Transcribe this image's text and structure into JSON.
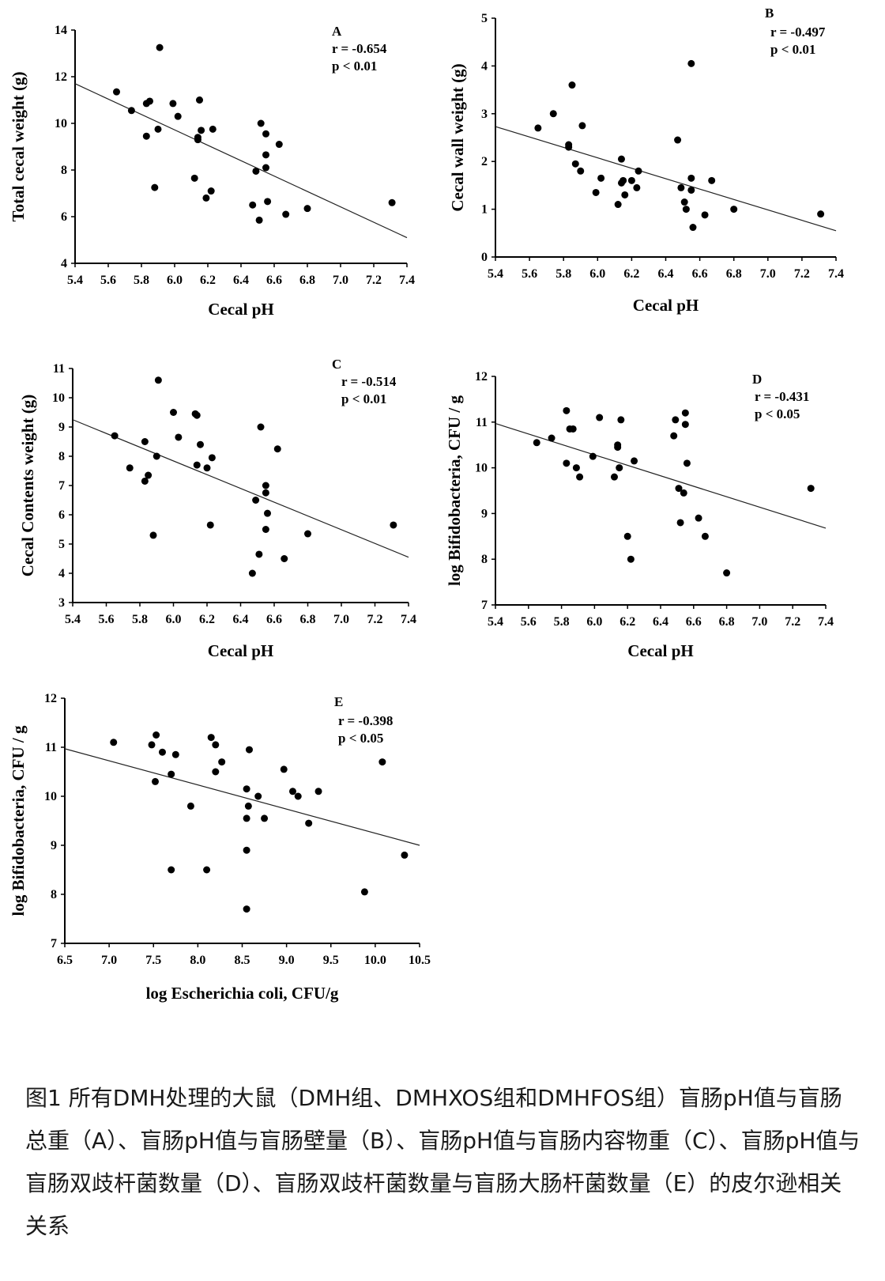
{
  "caption": "图1 所有DMH处理的大鼠（DMH组、DMHXOS组和DMHFOS组）盲肠pH值与盲肠总重（A）、盲肠pH值与盲肠壁量（B）、盲肠pH值与盲肠内容物重（C）、盲肠pH值与盲肠双歧杆菌数量（D）、盲肠双歧杆菌数量与盲肠大肠杆菌数量（E）的皮尔逊相关关系",
  "chart_data": [
    {
      "type": "scatter",
      "panel": "A",
      "r_text": "r = -0.654",
      "p_text": "p < 0.01",
      "xlabel": "Cecal pH",
      "ylabel": "Total cecal  weight (g)",
      "xlim": [
        5.4,
        7.4
      ],
      "ylim": [
        4,
        14
      ],
      "xticks": [
        "5.4",
        "5.6",
        "5.8",
        "6.0",
        "6.2",
        "6.4",
        "6.6",
        "6.8",
        "7.0",
        "7.2",
        "7.4"
      ],
      "yticks": [
        "4",
        "6",
        "8",
        "10",
        "12",
        "14"
      ],
      "points": [
        [
          5.65,
          11.35
        ],
        [
          5.74,
          10.55
        ],
        [
          5.83,
          10.85
        ],
        [
          5.85,
          10.95
        ],
        [
          5.83,
          9.45
        ],
        [
          5.88,
          7.25
        ],
        [
          5.9,
          9.75
        ],
        [
          5.91,
          13.25
        ],
        [
          5.99,
          10.85
        ],
        [
          6.02,
          10.3
        ],
        [
          6.12,
          7.65
        ],
        [
          6.14,
          9.3
        ],
        [
          6.14,
          9.4
        ],
        [
          6.15,
          11.0
        ],
        [
          6.16,
          9.7
        ],
        [
          6.19,
          6.8
        ],
        [
          6.22,
          7.1
        ],
        [
          6.23,
          9.75
        ],
        [
          6.47,
          6.5
        ],
        [
          6.49,
          7.95
        ],
        [
          6.51,
          5.85
        ],
        [
          6.52,
          10.0
        ],
        [
          6.55,
          8.1
        ],
        [
          6.55,
          9.55
        ],
        [
          6.55,
          8.65
        ],
        [
          6.56,
          6.65
        ],
        [
          6.63,
          9.1
        ],
        [
          6.67,
          6.1
        ],
        [
          6.8,
          6.35
        ],
        [
          7.31,
          6.6
        ]
      ],
      "trend": [
        [
          5.4,
          11.7
        ],
        [
          7.4,
          5.1
        ]
      ]
    },
    {
      "type": "scatter",
      "panel": "B",
      "r_text": "r = -0.497",
      "p_text": "p < 0.01",
      "xlabel": "Cecal pH",
      "ylabel": "Cecal wall  weight (g)",
      "xlim": [
        5.4,
        7.4
      ],
      "ylim": [
        0,
        5
      ],
      "xticks": [
        "5.4",
        "5.6",
        "5.8",
        "6.0",
        "6.2",
        "6.4",
        "6.6",
        "6.8",
        "7.0",
        "7.2",
        "7.4"
      ],
      "yticks": [
        "0",
        "1",
        "2",
        "3",
        "4",
        "5"
      ],
      "points": [
        [
          5.65,
          2.7
        ],
        [
          5.74,
          3.0
        ],
        [
          5.83,
          2.35
        ],
        [
          5.83,
          2.3
        ],
        [
          5.85,
          3.6
        ],
        [
          5.87,
          1.95
        ],
        [
          5.9,
          1.8
        ],
        [
          5.91,
          2.75
        ],
        [
          5.99,
          1.35
        ],
        [
          6.02,
          1.65
        ],
        [
          6.12,
          1.1
        ],
        [
          6.14,
          2.05
        ],
        [
          6.14,
          1.55
        ],
        [
          6.15,
          1.6
        ],
        [
          6.16,
          1.3
        ],
        [
          6.2,
          1.6
        ],
        [
          6.23,
          1.45
        ],
        [
          6.24,
          1.8
        ],
        [
          6.47,
          2.45
        ],
        [
          6.49,
          1.45
        ],
        [
          6.51,
          1.15
        ],
        [
          6.52,
          1.0
        ],
        [
          6.55,
          4.05
        ],
        [
          6.55,
          1.65
        ],
        [
          6.55,
          1.4
        ],
        [
          6.56,
          0.62
        ],
        [
          6.63,
          0.88
        ],
        [
          6.67,
          1.6
        ],
        [
          6.8,
          1.0
        ],
        [
          7.31,
          0.9
        ]
      ],
      "trend": [
        [
          5.4,
          2.73
        ],
        [
          7.4,
          0.55
        ]
      ]
    },
    {
      "type": "scatter",
      "panel": "C",
      "r_text": "r = -0.514",
      "p_text": "p < 0.01",
      "xlabel": "Cecal pH",
      "ylabel": "Cecal Contents weight (g)",
      "xlim": [
        5.4,
        7.4
      ],
      "ylim": [
        3,
        11
      ],
      "xticks": [
        "5.4",
        "5.6",
        "5.8",
        "6.0",
        "6.2",
        "6.4",
        "6.6",
        "6.8",
        "7.0",
        "7.2",
        "7.4"
      ],
      "yticks": [
        "3",
        "4",
        "5",
        "6",
        "7",
        "8",
        "9",
        "10",
        "11"
      ],
      "points": [
        [
          5.65,
          8.7
        ],
        [
          5.74,
          7.6
        ],
        [
          5.83,
          8.5
        ],
        [
          5.83,
          7.15
        ],
        [
          5.85,
          7.35
        ],
        [
          5.88,
          5.3
        ],
        [
          5.9,
          8.0
        ],
        [
          5.91,
          10.6
        ],
        [
          6.0,
          9.5
        ],
        [
          6.03,
          8.65
        ],
        [
          6.13,
          9.45
        ],
        [
          6.14,
          9.4
        ],
        [
          6.14,
          7.7
        ],
        [
          6.16,
          8.4
        ],
        [
          6.2,
          7.6
        ],
        [
          6.22,
          5.65
        ],
        [
          6.23,
          7.95
        ],
        [
          6.47,
          4.0
        ],
        [
          6.49,
          6.5
        ],
        [
          6.51,
          4.65
        ],
        [
          6.52,
          9.0
        ],
        [
          6.55,
          7.0
        ],
        [
          6.55,
          6.75
        ],
        [
          6.55,
          5.5
        ],
        [
          6.56,
          6.05
        ],
        [
          6.62,
          8.25
        ],
        [
          6.66,
          4.5
        ],
        [
          6.8,
          5.35
        ],
        [
          7.31,
          5.65
        ]
      ],
      "trend": [
        [
          5.4,
          9.25
        ],
        [
          7.4,
          4.55
        ]
      ]
    },
    {
      "type": "scatter",
      "panel": "D",
      "r_text": "r = -0.431",
      "p_text": "p < 0.05",
      "xlabel": "Cecal pH",
      "ylabel": "log Bifidobacteria, CFU / g",
      "xlim": [
        5.4,
        7.4
      ],
      "ylim": [
        7,
        12
      ],
      "xticks": [
        "5.4",
        "5.6",
        "5.8",
        "6.0",
        "6.2",
        "6.4",
        "6.6",
        "6.8",
        "7.0",
        "7.2",
        "7.4"
      ],
      "yticks": [
        "7",
        "8",
        "9",
        "10",
        "11",
        "12"
      ],
      "points": [
        [
          5.65,
          10.55
        ],
        [
          5.74,
          10.65
        ],
        [
          5.83,
          11.25
        ],
        [
          5.83,
          10.1
        ],
        [
          5.85,
          10.85
        ],
        [
          5.87,
          10.85
        ],
        [
          5.89,
          10.0
        ],
        [
          5.91,
          9.8
        ],
        [
          5.99,
          10.25
        ],
        [
          6.03,
          11.1
        ],
        [
          6.12,
          9.8
        ],
        [
          6.14,
          10.5
        ],
        [
          6.14,
          10.45
        ],
        [
          6.15,
          10.0
        ],
        [
          6.16,
          11.05
        ],
        [
          6.2,
          8.5
        ],
        [
          6.22,
          8.0
        ],
        [
          6.24,
          10.15
        ],
        [
          6.48,
          10.7
        ],
        [
          6.49,
          11.05
        ],
        [
          6.51,
          9.55
        ],
        [
          6.52,
          8.8
        ],
        [
          6.54,
          9.45
        ],
        [
          6.55,
          11.2
        ],
        [
          6.55,
          10.95
        ],
        [
          6.56,
          10.1
        ],
        [
          6.63,
          8.9
        ],
        [
          6.67,
          8.5
        ],
        [
          6.8,
          7.7
        ],
        [
          7.31,
          9.55
        ]
      ],
      "trend": [
        [
          5.4,
          10.97
        ],
        [
          7.4,
          8.68
        ]
      ]
    },
    {
      "type": "scatter",
      "panel": "E",
      "r_text": "r = -0.398",
      "p_text": "p < 0.05",
      "xlabel": "log Escherichia coli, CFU/g",
      "ylabel": "log Bifidobacteria, CFU / g",
      "xlim": [
        6.5,
        10.5
      ],
      "ylim": [
        7,
        12
      ],
      "xticks": [
        "6.5",
        "7.0",
        "7.5",
        "8.0",
        "8.5",
        "9.0",
        "9.5",
        "10.0",
        "10.5"
      ],
      "yticks": [
        "7",
        "8",
        "9",
        "10",
        "11",
        "12"
      ],
      "points": [
        [
          7.05,
          11.1
        ],
        [
          7.48,
          11.05
        ],
        [
          7.53,
          11.25
        ],
        [
          7.6,
          10.9
        ],
        [
          7.52,
          10.3
        ],
        [
          7.7,
          10.45
        ],
        [
          7.75,
          10.85
        ],
        [
          7.92,
          9.8
        ],
        [
          7.7,
          8.5
        ],
        [
          8.1,
          8.5
        ],
        [
          8.15,
          11.2
        ],
        [
          8.2,
          11.05
        ],
        [
          8.2,
          10.5
        ],
        [
          8.27,
          10.7
        ],
        [
          8.55,
          10.15
        ],
        [
          8.58,
          10.95
        ],
        [
          8.57,
          9.8
        ],
        [
          8.55,
          9.55
        ],
        [
          8.55,
          8.9
        ],
        [
          8.55,
          7.7
        ],
        [
          8.68,
          10.0
        ],
        [
          8.75,
          9.55
        ],
        [
          8.97,
          10.55
        ],
        [
          9.07,
          10.1
        ],
        [
          9.13,
          10.0
        ],
        [
          9.25,
          9.45
        ],
        [
          9.36,
          10.1
        ],
        [
          9.88,
          8.05
        ],
        [
          10.08,
          10.7
        ],
        [
          10.33,
          8.8
        ]
      ],
      "trend": [
        [
          6.5,
          10.97
        ],
        [
          10.5,
          9.0
        ]
      ]
    }
  ]
}
